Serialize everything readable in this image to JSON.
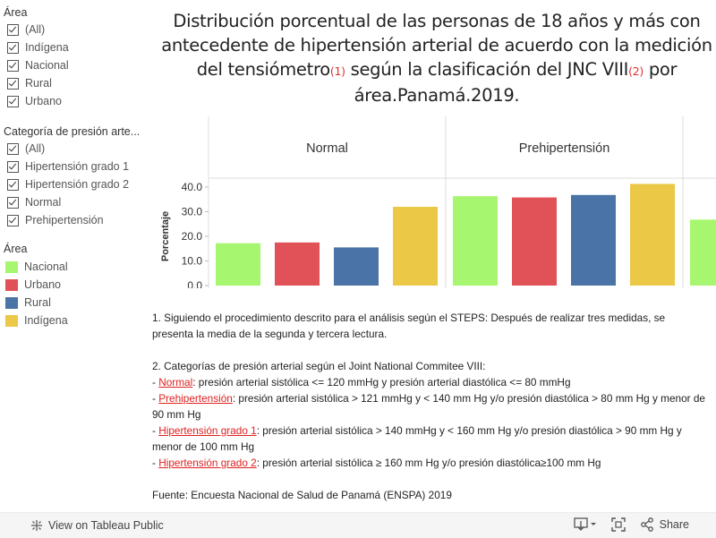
{
  "filters": {
    "area": {
      "title": "Área",
      "items": [
        "(All)",
        "Indígena",
        "Nacional",
        "Rural",
        "Urbano"
      ]
    },
    "category": {
      "title": "Categoría de presión arte...",
      "items": [
        "(All)",
        "Hipertensión grado 1",
        "Hipertensión grado 2",
        "Normal",
        "Prehipertensión"
      ]
    }
  },
  "legend": {
    "title": "Área",
    "items": [
      {
        "label": "Nacional",
        "color": "#a6f76f"
      },
      {
        "label": "Urbano",
        "color": "#e05258"
      },
      {
        "label": "Rural",
        "color": "#4a74a7"
      },
      {
        "label": "Indígena",
        "color": "#ecc847"
      }
    ]
  },
  "title": {
    "line1": "Distribución porcentual de las personas de 18 años y más con",
    "line2": "antecedente de hipertensión arterial de acuerdo con la medición",
    "line3a": "del tensiómetro",
    "sup1": "(1)",
    "line3b": " según la clasificación del JNC VIII",
    "sup2": "(2)",
    "line3c": " por",
    "line4": "área.Panamá.2019."
  },
  "chart_data": {
    "type": "bar",
    "ylabel": "Porcentaje",
    "yticks": [
      "40.0",
      "30.0",
      "20.0",
      "10.0",
      "0.0"
    ],
    "groups": [
      "Normal",
      "Prehipertensión",
      ""
    ],
    "series": [
      {
        "name": "Nacional",
        "color": "#a6f76f",
        "values": [
          17.2,
          36.3,
          26.8
        ]
      },
      {
        "name": "Urbano",
        "color": "#e05258",
        "values": [
          17.5,
          35.8,
          null
        ]
      },
      {
        "name": "Rural",
        "color": "#4a74a7",
        "values": [
          15.5,
          36.8,
          null
        ]
      },
      {
        "name": "Indígena",
        "color": "#ecc847",
        "values": [
          32.0,
          41.3,
          null
        ]
      }
    ]
  },
  "notes": {
    "n1": "1. Siguiendo el procedimiento descrito para el análisis según el STEPS: Después de realizar tres medidas, se presenta la media de la segunda y tercera lectura.",
    "n2": "2. Categorías de presión arterial según el Joint National Commitee VIII:",
    "normal_link": "Normal",
    "normal_text": ": presión arterial sistólica <= 120 mmHg y presión arterial diastólica <= 80 mmHg",
    "pre_link": "Prehipertensión",
    "pre_text": ": presión arterial sistólica > 121 mmHg y < 140 mm Hg y/o presión diastólica > 80 mm Hg y menor de 90 mm Hg",
    "g1_link": " Hipertensión grado 1",
    "g1_text": ": presión arterial sistólica > 140 mmHg y < 160 mm Hg y/o presión diastólica > 90 mm Hg y menor de 100 mm Hg",
    "g2_link": "Hipertensión grado 2",
    "g2_text": ": presión arterial sistólica ≥ 160 mm Hg y/o presión diastólica≥100 mm Hg",
    "dash": "- ",
    "source": "Fuente: Encuesta Nacional de Salud de Panamá (ENSPA) 2019"
  },
  "footer": {
    "view_label": "View on Tableau Public",
    "share_label": "Share"
  }
}
